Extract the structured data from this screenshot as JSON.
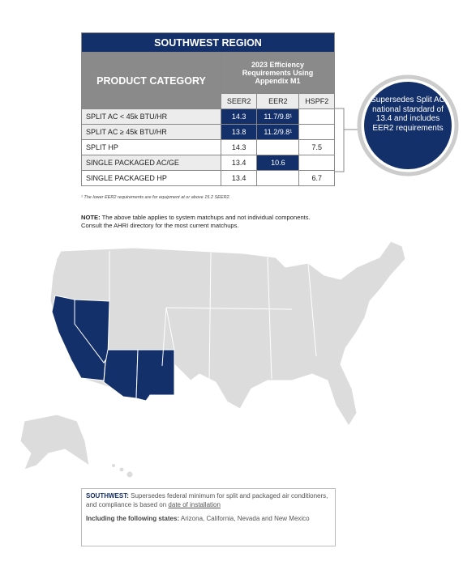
{
  "table": {
    "title": "SOUTHWEST REGION",
    "category_header": "PRODUCT CATEGORY",
    "group_header": "2023 Efficiency Requirements Using Appendix M1",
    "columns": [
      "SEER2",
      "EER2",
      "HSPF2"
    ],
    "rows": [
      [
        "SPLIT AC < 45k BTU/HR",
        "14.3",
        "11.7/9.8¹",
        null
      ],
      [
        "SPLIT AC ≥ 45k BTU/HR",
        "13.8",
        "11.2/9.8¹",
        null
      ],
      [
        "SPLIT HP",
        "14.3",
        null,
        "7.5"
      ],
      [
        "SINGLE PACKAGED AC/GE",
        "13.4",
        "10.6",
        null
      ],
      [
        "SINGLE PACKAGED HP",
        "13.4",
        null,
        "6.7"
      ]
    ],
    "highlighted": [
      [
        true,
        true,
        false
      ],
      [
        true,
        true,
        false
      ],
      [
        false,
        false,
        false
      ],
      [
        false,
        true,
        false
      ],
      [
        false,
        false,
        false
      ]
    ]
  },
  "callout": "Supersedes Split AC national standard of 13.4 and includes EER2 requirements",
  "footnote": "¹ The lower EER2 requirements are for equipment at or above 15.2 SEER2.",
  "note": {
    "label": "NOTE:",
    "text": "The above table applies to system matchups and not individual components. Consult the AHRI directory for the most current matchups."
  },
  "summary": {
    "label": "SOUTHWEST:",
    "text": "Supersedes federal minimum for split and packaged air conditioners, and compliance is based on",
    "link": "date of installation",
    "states_label": "Including the following states:",
    "states": "Arizona, California, Nevada and New Mexico"
  }
}
